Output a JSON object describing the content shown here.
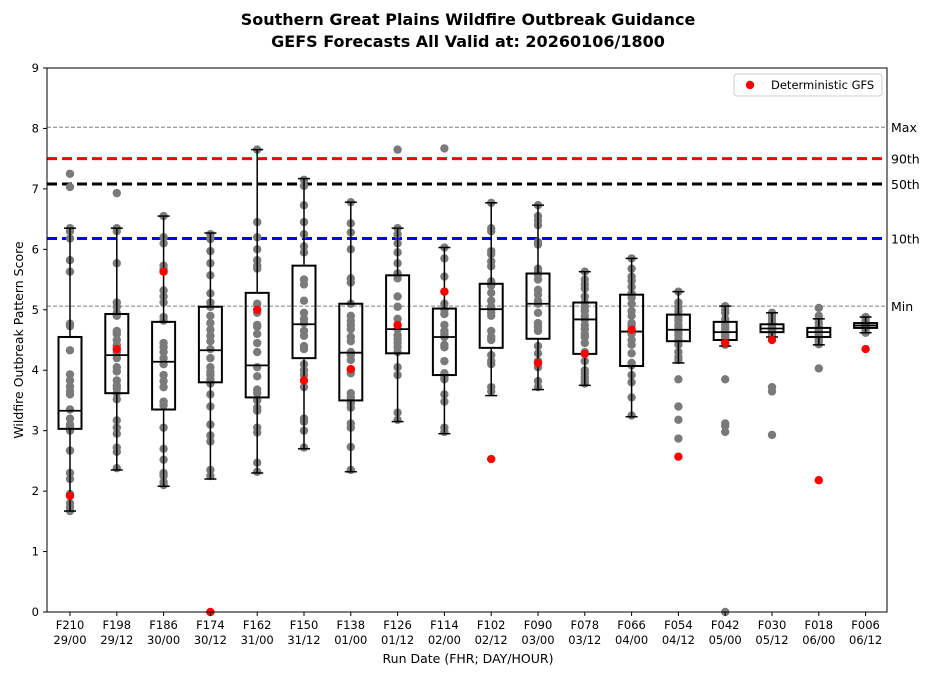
{
  "chart_data": {
    "type": "box",
    "title_line1": "Southern Great Plains Wildfire Outbreak Guidance",
    "title_line2": "GEFS Forecasts All Valid at: 20260106/1800",
    "xlabel": "Run Date (FHR; DAY/HOUR)",
    "ylabel": "Wildfire Outbreak Pattern Score",
    "ylim": [
      0,
      9
    ],
    "yticks": [
      "0",
      "1",
      "2",
      "3",
      "4",
      "5",
      "6",
      "7",
      "8",
      "9"
    ],
    "legend": {
      "label": "Deterministic GFS",
      "position": "top-right",
      "color": "#ff0000"
    },
    "reference_lines": [
      {
        "label": "Max",
        "value": 8.02,
        "color": "#808080",
        "style": "dashed-thin"
      },
      {
        "label": "90th",
        "value": 7.5,
        "color": "#ff0000",
        "style": "dashed-thick"
      },
      {
        "label": "50th",
        "value": 7.08,
        "color": "#000000",
        "style": "dashed-thick"
      },
      {
        "label": "10th",
        "value": 6.18,
        "color": "#0000ff",
        "style": "dashed-thick"
      },
      {
        "label": "Min",
        "value": 5.06,
        "color": "#808080",
        "style": "dashed-thin"
      }
    ],
    "categories": [
      {
        "fhr": "F210",
        "run": "29/00",
        "q1": 3.03,
        "median": 3.33,
        "q3": 4.55,
        "wlo": 1.67,
        "whi": 6.35,
        "gfs": 1.92,
        "members": [
          7.25,
          7.03,
          6.35,
          6.3,
          6.18,
          5.82,
          5.63,
          4.77,
          4.73,
          4.33,
          3.93,
          3.83,
          3.73,
          3.65,
          3.6,
          3.35,
          3.2,
          3.1,
          3.05,
          3.0,
          2.67,
          2.3,
          2.2,
          1.95,
          1.8,
          1.73,
          1.67
        ]
      },
      {
        "fhr": "F198",
        "run": "29/12",
        "q1": 3.62,
        "median": 4.25,
        "q3": 4.93,
        "wlo": 2.35,
        "whi": 6.35,
        "gfs": 4.35,
        "members": [
          6.93,
          6.35,
          6.3,
          5.77,
          5.12,
          5.05,
          4.95,
          4.9,
          4.65,
          4.6,
          4.5,
          4.42,
          4.4,
          4.3,
          4.2,
          4.05,
          3.98,
          3.83,
          3.75,
          3.7,
          3.62,
          3.52,
          3.17,
          3.05,
          2.95,
          2.72,
          2.65,
          2.38
        ]
      },
      {
        "fhr": "F186",
        "run": "30/00",
        "q1": 3.35,
        "median": 4.14,
        "q3": 4.8,
        "wlo": 2.08,
        "whi": 6.55,
        "gfs": 5.63,
        "members": [
          6.55,
          6.2,
          6.1,
          5.73,
          5.67,
          5.32,
          5.22,
          5.12,
          4.88,
          4.82,
          4.45,
          4.38,
          4.3,
          4.2,
          4.1,
          3.92,
          3.82,
          3.72,
          3.48,
          3.42,
          3.05,
          2.7,
          2.52,
          2.3,
          2.25,
          2.15,
          2.1
        ]
      },
      {
        "fhr": "F174",
        "run": "30/12",
        "q1": 3.8,
        "median": 4.33,
        "q3": 5.05,
        "wlo": 2.2,
        "whi": 6.27,
        "gfs": 0.0,
        "members": [
          6.25,
          6.17,
          5.97,
          5.77,
          5.57,
          5.27,
          5.12,
          5.05,
          4.9,
          4.78,
          4.67,
          4.57,
          4.48,
          4.35,
          4.2,
          4.05,
          3.97,
          3.92,
          3.85,
          3.78,
          3.6,
          3.4,
          3.1,
          2.92,
          2.82,
          2.35,
          2.25
        ]
      },
      {
        "fhr": "F162",
        "run": "31/00",
        "q1": 3.55,
        "median": 4.08,
        "q3": 5.28,
        "wlo": 2.3,
        "whi": 7.65,
        "gfs": 5.0,
        "members": [
          7.65,
          6.45,
          6.2,
          6.0,
          5.82,
          5.73,
          5.68,
          5.1,
          4.95,
          4.75,
          4.72,
          4.6,
          4.45,
          4.3,
          4.05,
          3.9,
          3.68,
          3.62,
          3.5,
          3.38,
          3.33,
          3.05,
          2.97,
          2.47,
          2.32
        ]
      },
      {
        "fhr": "F150",
        "run": "31/12",
        "q1": 4.2,
        "median": 4.76,
        "q3": 5.73,
        "wlo": 2.7,
        "whi": 7.17,
        "gfs": 3.83,
        "members": [
          7.15,
          7.05,
          6.73,
          6.45,
          6.25,
          6.05,
          5.95,
          5.5,
          5.42,
          5.15,
          4.95,
          4.85,
          4.78,
          4.65,
          4.57,
          4.4,
          4.35,
          4.1,
          4.0,
          3.92,
          3.72,
          3.2,
          3.15,
          3.0,
          2.72
        ]
      },
      {
        "fhr": "F138",
        "run": "01/00",
        "q1": 3.5,
        "median": 4.29,
        "q3": 5.1,
        "wlo": 2.32,
        "whi": 6.78,
        "gfs": 4.02,
        "members": [
          6.78,
          6.43,
          6.28,
          6.0,
          5.52,
          5.45,
          5.1,
          4.9,
          4.82,
          4.75,
          4.68,
          4.55,
          4.48,
          4.3,
          4.25,
          4.17,
          4.0,
          3.95,
          3.62,
          3.55,
          3.45,
          3.38,
          3.12,
          3.05,
          2.73,
          2.35
        ]
      },
      {
        "fhr": "F126",
        "run": "01/12",
        "q1": 4.28,
        "median": 4.68,
        "q3": 5.57,
        "wlo": 3.15,
        "whi": 6.35,
        "gfs": 4.75,
        "members": [
          7.65,
          6.35,
          6.25,
          6.1,
          5.95,
          5.77,
          5.6,
          5.52,
          5.22,
          5.05,
          4.85,
          4.75,
          4.68,
          4.58,
          4.52,
          4.45,
          4.38,
          4.3,
          4.05,
          3.92,
          3.3,
          3.18
        ]
      },
      {
        "fhr": "F114",
        "run": "02/00",
        "q1": 3.92,
        "median": 4.55,
        "q3": 5.02,
        "wlo": 2.95,
        "whi": 6.03,
        "gfs": 5.3,
        "members": [
          7.67,
          6.03,
          5.85,
          5.55,
          5.3,
          5.1,
          5.0,
          4.93,
          4.75,
          4.65,
          4.6,
          4.55,
          4.42,
          4.38,
          4.15,
          3.95,
          3.88,
          3.85,
          3.6,
          3.48,
          3.05,
          2.98
        ]
      },
      {
        "fhr": "F102",
        "run": "02/12",
        "q1": 4.37,
        "median": 5.01,
        "q3": 5.43,
        "wlo": 3.58,
        "whi": 6.77,
        "gfs": 2.53,
        "members": [
          6.77,
          6.35,
          6.3,
          5.97,
          5.92,
          5.8,
          5.72,
          5.47,
          5.4,
          5.28,
          5.15,
          5.05,
          5.0,
          4.95,
          4.9,
          4.65,
          4.55,
          4.5,
          4.25,
          4.15,
          4.1,
          3.72,
          3.65
        ]
      },
      {
        "fhr": "F090",
        "run": "03/00",
        "q1": 4.52,
        "median": 5.1,
        "q3": 5.6,
        "wlo": 3.68,
        "whi": 6.73,
        "gfs": 4.12,
        "members": [
          6.73,
          6.55,
          6.48,
          6.4,
          6.12,
          6.08,
          5.68,
          5.63,
          5.58,
          5.5,
          5.33,
          5.25,
          5.15,
          5.1,
          4.95,
          4.78,
          4.72,
          4.65,
          4.4,
          4.28,
          4.15,
          4.05,
          3.82,
          3.72
        ]
      },
      {
        "fhr": "F078",
        "run": "03/12",
        "q1": 4.27,
        "median": 4.84,
        "q3": 5.12,
        "wlo": 3.75,
        "whi": 5.63,
        "gfs": 4.27,
        "members": [
          5.63,
          5.5,
          5.42,
          5.35,
          5.22,
          5.12,
          5.05,
          4.98,
          4.9,
          4.84,
          4.75,
          4.68,
          4.6,
          4.55,
          4.45,
          4.3,
          4.15,
          4.0,
          3.95,
          3.88,
          3.82,
          3.78
        ]
      },
      {
        "fhr": "F066",
        "run": "04/00",
        "q1": 4.07,
        "median": 4.64,
        "q3": 5.25,
        "wlo": 3.23,
        "whi": 5.85,
        "gfs": 4.67,
        "members": [
          5.85,
          5.68,
          5.55,
          5.48,
          5.38,
          5.27,
          5.2,
          5.1,
          4.98,
          4.9,
          4.78,
          4.73,
          4.65,
          4.6,
          4.5,
          4.42,
          4.28,
          4.12,
          4.08,
          3.92,
          3.8,
          3.55,
          3.25
        ]
      },
      {
        "fhr": "F054",
        "run": "04/12",
        "q1": 4.48,
        "median": 4.67,
        "q3": 4.92,
        "wlo": 4.12,
        "whi": 5.3,
        "gfs": 2.57,
        "members": [
          5.3,
          5.12,
          5.05,
          4.98,
          4.92,
          4.87,
          4.82,
          4.75,
          4.7,
          4.67,
          4.62,
          4.58,
          4.52,
          4.48,
          4.42,
          4.3,
          4.22,
          4.17,
          3.85,
          3.4,
          3.18,
          2.87
        ]
      },
      {
        "fhr": "F042",
        "run": "05/00",
        "q1": 4.5,
        "median": 4.63,
        "q3": 4.8,
        "wlo": 4.4,
        "whi": 5.06,
        "gfs": 4.45,
        "members": [
          5.06,
          5.0,
          4.95,
          4.85,
          4.8,
          4.75,
          4.7,
          4.65,
          4.63,
          4.6,
          4.58,
          4.55,
          4.5,
          4.47,
          4.42,
          3.85,
          3.12,
          3.08,
          2.98,
          0.0
        ]
      },
      {
        "fhr": "F030",
        "run": "05/12",
        "q1": 4.63,
        "median": 4.69,
        "q3": 4.76,
        "wlo": 4.55,
        "whi": 4.95,
        "gfs": 4.5,
        "members": [
          4.95,
          4.9,
          4.85,
          4.8,
          4.78,
          4.75,
          4.72,
          4.7,
          4.69,
          4.67,
          4.65,
          4.63,
          4.6,
          4.57,
          3.72,
          3.65,
          2.93
        ]
      },
      {
        "fhr": "F018",
        "run": "06/00",
        "q1": 4.55,
        "median": 4.63,
        "q3": 4.7,
        "wlo": 4.42,
        "whi": 4.85,
        "gfs": 2.18,
        "members": [
          5.03,
          4.9,
          4.85,
          4.78,
          4.72,
          4.7,
          4.68,
          4.65,
          4.63,
          4.6,
          4.58,
          4.55,
          4.52,
          4.48,
          4.43,
          4.03
        ]
      },
      {
        "fhr": "F006",
        "run": "06/12",
        "q1": 4.7,
        "median": 4.74,
        "q3": 4.78,
        "wlo": 4.62,
        "whi": 4.88,
        "gfs": 4.35,
        "members": [
          4.88,
          4.85,
          4.82,
          4.8,
          4.78,
          4.77,
          4.76,
          4.75,
          4.74,
          4.73,
          4.72,
          4.7,
          4.68,
          4.65,
          4.62
        ]
      }
    ]
  }
}
